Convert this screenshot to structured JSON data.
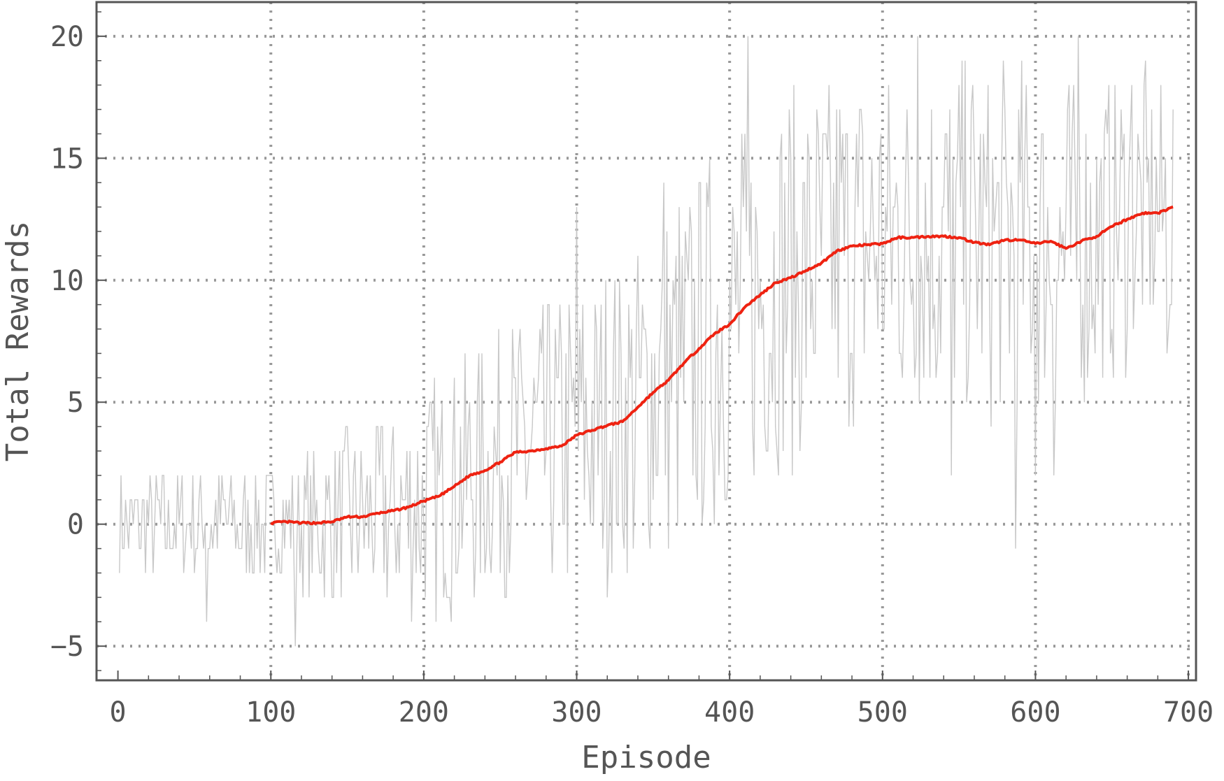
{
  "chart_data": {
    "type": "line",
    "title": "",
    "xlabel": "Episode",
    "ylabel": "Total Rewards",
    "xlim": [
      -14,
      705
    ],
    "ylim": [
      -6.4,
      21.4
    ],
    "xticks": [
      0,
      100,
      200,
      300,
      400,
      500,
      600,
      700
    ],
    "yticks": [
      -5,
      0,
      5,
      10,
      15,
      20
    ],
    "xtick_labels": [
      "0",
      "100",
      "200",
      "300",
      "400",
      "500",
      "600",
      "700"
    ],
    "ytick_labels": [
      "−5",
      "0",
      "5",
      "10",
      "15",
      "20"
    ],
    "grid": true,
    "grid_style": "dotted",
    "legend": "none",
    "series": [
      {
        "style": "raw",
        "color": "#c8c8c8",
        "seed": 7,
        "raw_min": -5,
        "raw_max": 20,
        "x_range": [
          1,
          690
        ],
        "noise_anchors": [
          [
            0,
            1.2
          ],
          [
            100,
            1.5
          ],
          [
            200,
            3.0
          ],
          [
            300,
            4.0
          ],
          [
            400,
            5.0
          ],
          [
            500,
            4.8
          ],
          [
            600,
            4.6
          ],
          [
            690,
            3.5
          ]
        ],
        "spikes": [
          [
            58,
            -4
          ],
          [
            116,
            -5
          ],
          [
            300,
            13
          ],
          [
            357,
            14
          ],
          [
            412,
            20
          ],
          [
            523,
            20
          ],
          [
            545,
            2
          ],
          [
            587,
            -1
          ],
          [
            600,
            2
          ],
          [
            612,
            2
          ],
          [
            628,
            20
          ],
          [
            663,
            18
          ],
          [
            686,
            7
          ]
        ]
      },
      {
        "style": "moving-average",
        "color": "#ee2211",
        "x": [
          100,
          110,
          120,
          130,
          140,
          150,
          160,
          170,
          180,
          190,
          200,
          210,
          220,
          230,
          240,
          250,
          260,
          270,
          280,
          290,
          300,
          310,
          320,
          330,
          340,
          350,
          360,
          370,
          380,
          390,
          400,
          410,
          420,
          430,
          440,
          450,
          460,
          470,
          480,
          490,
          500,
          510,
          520,
          530,
          540,
          550,
          560,
          570,
          580,
          590,
          600,
          610,
          620,
          630,
          640,
          650,
          660,
          670,
          680,
          690
        ],
        "y": [
          0.05,
          0.1,
          0.05,
          0.05,
          0.1,
          0.3,
          0.3,
          0.45,
          0.55,
          0.7,
          0.95,
          1.15,
          1.55,
          2.0,
          2.2,
          2.55,
          2.95,
          3.0,
          3.1,
          3.2,
          3.65,
          3.85,
          4.05,
          4.2,
          4.8,
          5.4,
          5.9,
          6.6,
          7.2,
          7.8,
          8.2,
          8.9,
          9.4,
          9.9,
          10.1,
          10.4,
          10.7,
          11.2,
          11.4,
          11.45,
          11.5,
          11.75,
          11.75,
          11.8,
          11.8,
          11.75,
          11.55,
          11.45,
          11.65,
          11.65,
          11.5,
          11.6,
          11.3,
          11.6,
          11.8,
          12.2,
          12.5,
          12.75,
          12.75,
          13.0
        ]
      }
    ]
  }
}
